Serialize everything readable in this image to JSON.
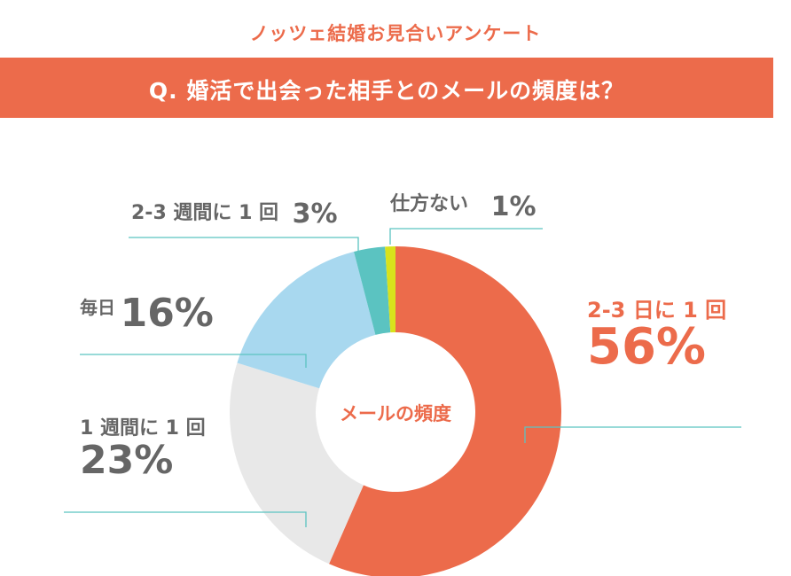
{
  "header": {
    "survey_title": "ノッツェ結婚お見合いアンケート",
    "question": "Q. 婚活で出会った相手とのメールの頻度は？"
  },
  "colors": {
    "accent": "#EC6B4B",
    "light_gray": "#E8E8E8",
    "light_blue": "#A8D8EF",
    "teal": "#5BC3C1",
    "yellow_green": "#D8E21C",
    "leader_line": "#5BC3C1",
    "label_text": "#666666"
  },
  "chart_data": {
    "type": "pie",
    "donut": true,
    "center_label": "メールの頻度",
    "slices": [
      {
        "label": "2-3 日に 1 回",
        "value": 56,
        "display": "56%",
        "color": "#EC6B4B"
      },
      {
        "label": "1 週間に 1 回",
        "value": 23,
        "display": "23%",
        "color": "#E8E8E8"
      },
      {
        "label": "毎日",
        "value": 16,
        "display": "16%",
        "color": "#A8D8EF"
      },
      {
        "label": "2-3 週間に 1 回",
        "value": 3,
        "display": "3%",
        "color": "#5BC3C1"
      },
      {
        "label": "仕方ない",
        "value": 1,
        "display": "1%",
        "color": "#D8E21C"
      }
    ]
  }
}
